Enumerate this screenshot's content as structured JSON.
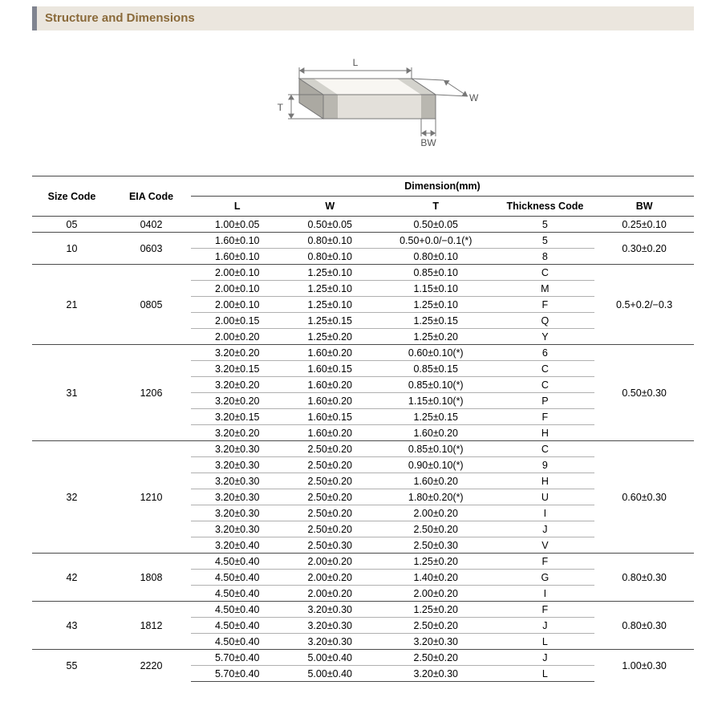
{
  "section_title": "Structure and Dimensions",
  "diagram": {
    "labels": {
      "L": "L",
      "W": "W",
      "T": "T",
      "BW": "BW"
    },
    "stroke": "#777777",
    "fill_top": "#f8f6f2",
    "fill_front": "#e3e0da",
    "fill_side": "#d2cec6",
    "terminal_top": "#d3d2cc",
    "terminal_front": "#b9b7b0",
    "terminal_side": "#aba9a2",
    "label_color": "#555555"
  },
  "table": {
    "header": {
      "size_code": "Size Code",
      "eia_code": "EIA Code",
      "dimension": "Dimension(mm)",
      "L": "L",
      "W": "W",
      "T": "T",
      "thickness_code": "Thickness Code",
      "BW": "BW"
    },
    "groups": [
      {
        "size": "05",
        "eia": "0402",
        "bw": "0.25±0.10",
        "rows": [
          {
            "L": "1.00±0.05",
            "W": "0.50±0.05",
            "T": "0.50±0.05",
            "tc": "5"
          }
        ]
      },
      {
        "size": "10",
        "eia": "0603",
        "bw": "0.30±0.20",
        "rows": [
          {
            "L": "1.60±0.10",
            "W": "0.80±0.10",
            "T": "0.50+0.0/−0.1(*)",
            "tc": "5"
          },
          {
            "L": "1.60±0.10",
            "W": "0.80±0.10",
            "T": "0.80±0.10",
            "tc": "8"
          }
        ]
      },
      {
        "size": "21",
        "eia": "0805",
        "bw": "0.5+0.2/−0.3",
        "rows": [
          {
            "L": "2.00±0.10",
            "W": "1.25±0.10",
            "T": "0.85±0.10",
            "tc": "C"
          },
          {
            "L": "2.00±0.10",
            "W": "1.25±0.10",
            "T": "1.15±0.10",
            "tc": "M"
          },
          {
            "L": "2.00±0.10",
            "W": "1.25±0.10",
            "T": "1.25±0.10",
            "tc": "F"
          },
          {
            "L": "2.00±0.15",
            "W": "1.25±0.15",
            "T": "1.25±0.15",
            "tc": "Q"
          },
          {
            "L": "2.00±0.20",
            "W": "1.25±0.20",
            "T": "1.25±0.20",
            "tc": "Y"
          }
        ]
      },
      {
        "size": "31",
        "eia": "1206",
        "bw": "0.50±0.30",
        "rows": [
          {
            "L": "3.20±0.20",
            "W": "1.60±0.20",
            "T": "0.60±0.10(*)",
            "tc": "6"
          },
          {
            "L": "3.20±0.15",
            "W": "1.60±0.15",
            "T": "0.85±0.15",
            "tc": "C"
          },
          {
            "L": "3.20±0.20",
            "W": "1.60±0.20",
            "T": "0.85±0.10(*)",
            "tc": "C"
          },
          {
            "L": "3.20±0.20",
            "W": "1.60±0.20",
            "T": "1.15±0.10(*)",
            "tc": "P"
          },
          {
            "L": "3.20±0.15",
            "W": "1.60±0.15",
            "T": "1.25±0.15",
            "tc": "F"
          },
          {
            "L": "3.20±0.20",
            "W": "1.60±0.20",
            "T": "1.60±0.20",
            "tc": "H"
          }
        ]
      },
      {
        "size": "32",
        "eia": "1210",
        "bw": "0.60±0.30",
        "rows": [
          {
            "L": "3.20±0.30",
            "W": "2.50±0.20",
            "T": "0.85±0.10(*)",
            "tc": "C"
          },
          {
            "L": "3.20±0.30",
            "W": "2.50±0.20",
            "T": "0.90±0.10(*)",
            "tc": "9"
          },
          {
            "L": "3.20±0.30",
            "W": "2.50±0.20",
            "T": "1.60±0.20",
            "tc": "H"
          },
          {
            "L": "3.20±0.30",
            "W": "2.50±0.20",
            "T": "1.80±0.20(*)",
            "tc": "U"
          },
          {
            "L": "3.20±0.30",
            "W": "2.50±0.20",
            "T": "2.00±0.20",
            "tc": "I"
          },
          {
            "L": "3.20±0.30",
            "W": "2.50±0.20",
            "T": "2.50±0.20",
            "tc": "J"
          },
          {
            "L": "3.20±0.40",
            "W": "2.50±0.30",
            "T": "2.50±0.30",
            "tc": "V"
          }
        ]
      },
      {
        "size": "42",
        "eia": "1808",
        "bw": "0.80±0.30",
        "rows": [
          {
            "L": "4.50±0.40",
            "W": "2.00±0.20",
            "T": "1.25±0.20",
            "tc": "F"
          },
          {
            "L": "4.50±0.40",
            "W": "2.00±0.20",
            "T": "1.40±0.20",
            "tc": "G"
          },
          {
            "L": "4.50±0.40",
            "W": "2.00±0.20",
            "T": "2.00±0.20",
            "tc": "I"
          }
        ]
      },
      {
        "size": "43",
        "eia": "1812",
        "bw": "0.80±0.30",
        "rows": [
          {
            "L": "4.50±0.40",
            "W": "3.20±0.30",
            "T": "1.25±0.20",
            "tc": "F"
          },
          {
            "L": "4.50±0.40",
            "W": "3.20±0.30",
            "T": "2.50±0.20",
            "tc": "J"
          },
          {
            "L": "4.50±0.40",
            "W": "3.20±0.30",
            "T": "3.20±0.30",
            "tc": "L"
          }
        ]
      },
      {
        "size": "55",
        "eia": "2220",
        "bw": "1.00±0.30",
        "rows": [
          {
            "L": "5.70±0.40",
            "W": "5.00±0.40",
            "T": "2.50±0.20",
            "tc": "J"
          },
          {
            "L": "5.70±0.40",
            "W": "5.00±0.40",
            "T": "3.20±0.30",
            "tc": "L"
          }
        ]
      }
    ]
  }
}
